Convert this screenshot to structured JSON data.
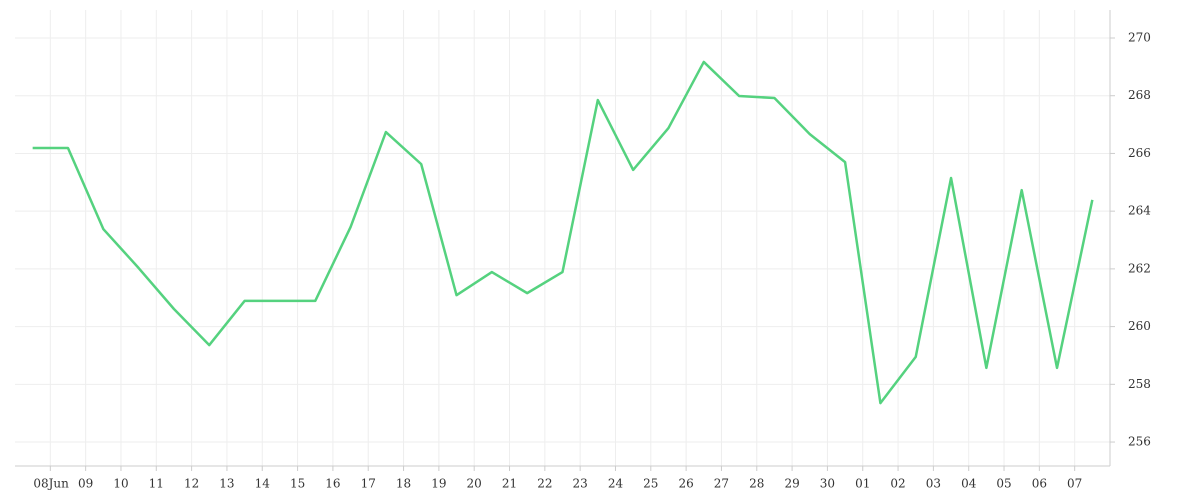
{
  "chart_data": {
    "type": "line",
    "x": [
      7.5,
      8.5,
      9.5,
      10.5,
      11.5,
      12.5,
      13.5,
      14.5,
      15.5,
      16.5,
      17.5,
      18.5,
      19.5,
      20.5,
      21.5,
      22.5,
      23.5,
      24.5,
      25.5,
      26.5,
      27.5,
      28.5,
      29.5,
      30.5,
      31.5,
      32.5,
      33.5,
      34.5,
      35.5,
      36.5,
      37.5
    ],
    "series": [
      {
        "color": "#55d27f",
        "values": [
          266.19,
          266.19,
          263.38,
          262.03,
          260.61,
          259.36,
          260.89,
          260.89,
          260.89,
          263.45,
          266.74,
          265.63,
          261.09,
          261.89,
          261.16,
          261.89,
          267.85,
          265.43,
          266.88,
          269.17,
          267.99,
          267.92,
          266.67,
          265.7,
          257.35,
          258.95,
          265.15,
          258.57,
          264.73,
          258.57,
          264.39
        ]
      }
    ],
    "xlim": [
      7,
      38
    ],
    "xticks": [
      {
        "value": 8,
        "label": "08Jun"
      },
      {
        "value": 9,
        "label": "09"
      },
      10,
      11,
      12,
      13,
      14,
      15,
      16,
      17,
      18,
      19,
      20,
      21,
      22,
      23,
      24,
      25,
      26,
      27,
      28,
      29,
      30,
      {
        "value": 31,
        "label": "01"
      },
      {
        "value": 32,
        "label": "02"
      },
      {
        "value": 33,
        "label": "03"
      },
      {
        "value": 34,
        "label": "04"
      },
      {
        "value": 35,
        "label": "05"
      },
      {
        "value": 36,
        "label": "06"
      },
      {
        "value": 37,
        "label": "07"
      }
    ],
    "ylim": [
      255.17,
      270.97
    ],
    "yticks": [
      256,
      258,
      260,
      262,
      264,
      266,
      268,
      270
    ],
    "grid": true
  }
}
